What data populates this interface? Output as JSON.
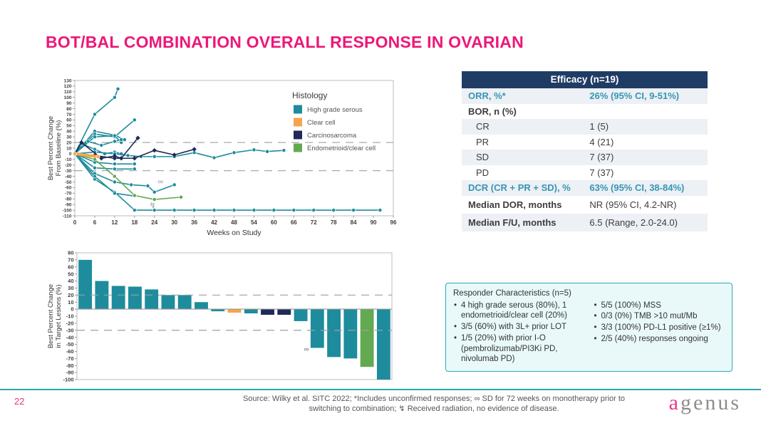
{
  "slide": {
    "title": "BOT/BAL COMBINATION OVERALL RESPONSE IN OVARIAN",
    "page_number": "22"
  },
  "efficacy_table": {
    "header": "Efficacy (n=19)",
    "rows": [
      {
        "label": "ORR, %*",
        "value": "26% (95% CI, 9-51%)",
        "style": "teal"
      },
      {
        "label": "BOR, n (%)",
        "value": "",
        "style": "bold"
      },
      {
        "label": "CR",
        "value": "1 (5)",
        "indent": true
      },
      {
        "label": "PR",
        "value": "4 (21)",
        "indent": true
      },
      {
        "label": "SD",
        "value": "7 (37)",
        "indent": true
      },
      {
        "label": "PD",
        "value": "7 (37)",
        "indent": true
      },
      {
        "label": "DCR (CR + PR + SD), %",
        "value": "63% (95% CI, 38-84%)",
        "style": "teal"
      },
      {
        "label": "Median DOR, months",
        "value": "NR (95% CI, 4.2-NR)",
        "style": "boldlabel"
      },
      {
        "label": "Median F/U, months",
        "value": "6.5 (Range, 2.0-24.0)",
        "style": "boldlabel"
      }
    ]
  },
  "responder_box": {
    "title": "Responder Characteristics (n=5)",
    "left_bullets": [
      "4 high grade serous (80%), 1 endometrioid/clear cell (20%)",
      "3/5 (60%) with 3L+ prior LOT",
      "1/5 (20%) with prior I-O (pembrolizumab/PI3Ki PD, nivolumab PD)"
    ],
    "right_bullets": [
      "5/5 (100%) MSS",
      "0/3 (0%) TMB >10 mut/Mb",
      "3/3 (100%) PD-L1 positive (≥1%)",
      "2/5 (40%) responses ongoing"
    ]
  },
  "footer": {
    "source_line1": "Source:  Wilky et al. SITC 2022; *Includes unconfirmed responses; ∞ SD for 72 weeks on monotherapy prior to",
    "source_line2": "switching to combination; ↯ Received radiation, no evidence of disease.",
    "logo_a": "a",
    "logo_rest": "genus"
  },
  "colors": {
    "accent_pink": "#EC1878",
    "teal": "#1E8C9C",
    "orange": "#F5A54B",
    "navy": "#1F2A5A",
    "green": "#62A951",
    "table_header_navy": "#1F3C64",
    "teal_text": "#3596B5",
    "divider_teal": "#2AA7AE"
  },
  "chart_data": [
    {
      "type": "line",
      "name": "spider-plot",
      "title": "",
      "xlabel": "Weeks on Study",
      "ylabel": "Best Percent Change From Baseline (%)",
      "ylabel_lines": [
        "Best Percent Change",
        "From Baseline (%)"
      ],
      "xlim": [
        0,
        96
      ],
      "ylim": [
        -110,
        130
      ],
      "xtick_step": 6,
      "ytick_step": 10,
      "reference_lines": [
        20,
        -30
      ],
      "legend": {
        "title": "Histology",
        "position": "top-right",
        "entries": [
          {
            "label": "High grade serous",
            "color": "#1E8C9C"
          },
          {
            "label": "Clear cell",
            "color": "#F5A54B"
          },
          {
            "label": "Carcinosarcoma",
            "color": "#1F2A5A"
          },
          {
            "label": "Endometrioid/clear cell",
            "color": "#62A951"
          }
        ]
      },
      "series": [
        {
          "histology": "High grade serous",
          "color": "#1E8C9C",
          "points": [
            [
              0,
              0
            ],
            [
              6,
              70
            ],
            [
              12,
              100
            ],
            [
              13,
              115
            ]
          ]
        },
        {
          "histology": "High grade serous",
          "color": "#1E8C9C",
          "points": [
            [
              0,
              0
            ],
            [
              6,
              40
            ],
            [
              12,
              33
            ],
            [
              15,
              25
            ]
          ]
        },
        {
          "histology": "High grade serous",
          "color": "#1E8C9C",
          "points": [
            [
              0,
              0
            ],
            [
              6,
              35
            ],
            [
              12,
              30
            ],
            [
              18,
              60
            ]
          ]
        },
        {
          "histology": "High grade serous",
          "color": "#1E8C9C",
          "points": [
            [
              0,
              0
            ],
            [
              6,
              30
            ],
            [
              12,
              32
            ],
            [
              14,
              20
            ]
          ]
        },
        {
          "histology": "High grade serous",
          "color": "#1E8C9C",
          "points": [
            [
              0,
              0
            ],
            [
              4,
              22
            ],
            [
              8,
              15
            ],
            [
              12,
              22
            ],
            [
              14,
              25
            ]
          ]
        },
        {
          "histology": "High grade serous",
          "color": "#1E8C9C",
          "points": [
            [
              0,
              0
            ],
            [
              2,
              18
            ],
            [
              6,
              8
            ],
            [
              9,
              0
            ],
            [
              12,
              3
            ],
            [
              14,
              0
            ]
          ]
        },
        {
          "histology": "High grade serous",
          "color": "#1E8C9C",
          "points": [
            [
              0,
              0
            ],
            [
              6,
              3
            ],
            [
              12,
              0
            ],
            [
              16,
              -3
            ],
            [
              20,
              -5
            ],
            [
              24,
              -5
            ],
            [
              30,
              -5
            ],
            [
              36,
              2
            ],
            [
              42,
              -7
            ],
            [
              48,
              2
            ],
            [
              54,
              7
            ],
            [
              58,
              4
            ],
            [
              63,
              6
            ]
          ]
        },
        {
          "histology": "High grade serous",
          "color": "#1E8C9C",
          "points": [
            [
              0,
              0
            ],
            [
              6,
              -15
            ],
            [
              12,
              -18
            ],
            [
              18,
              -18
            ]
          ]
        },
        {
          "histology": "High grade serous",
          "color": "#1E8C9C",
          "points": [
            [
              0,
              0
            ],
            [
              6,
              -25
            ],
            [
              12,
              -27
            ],
            [
              18,
              -27
            ]
          ]
        },
        {
          "histology": "High grade serous",
          "color": "#1E8C9C",
          "points": [
            [
              0,
              0
            ],
            [
              6,
              -35
            ],
            [
              12,
              -50
            ],
            [
              17,
              -55
            ],
            [
              22,
              -57
            ],
            [
              24,
              -68
            ],
            [
              30,
              -55
            ]
          ]
        },
        {
          "histology": "High grade serous",
          "color": "#1E8C9C",
          "points": [
            [
              0,
              0
            ],
            [
              6,
              -45
            ],
            [
              12,
              -68
            ],
            [
              18,
              -100
            ],
            [
              24,
              -100
            ],
            [
              30,
              -100
            ],
            [
              36,
              -100
            ],
            [
              42,
              -100
            ],
            [
              48,
              -100
            ],
            [
              54,
              -100
            ],
            [
              60,
              -100
            ],
            [
              66,
              -100
            ],
            [
              72,
              -100
            ],
            [
              78,
              -100
            ],
            [
              84,
              -100
            ],
            [
              92,
              -100
            ]
          ]
        },
        {
          "histology": "High grade serous",
          "color": "#1E8C9C",
          "points": [
            [
              0,
              0
            ],
            [
              6,
              -40
            ],
            [
              12,
              -70
            ],
            [
              18,
              -75
            ]
          ]
        },
        {
          "histology": "Endometrioid/clear cell",
          "color": "#62A951",
          "points": [
            [
              0,
              0
            ],
            [
              6,
              -10
            ],
            [
              12,
              -40
            ],
            [
              18,
              -74
            ],
            [
              24,
              -81
            ],
            [
              32,
              -77
            ]
          ]
        },
        {
          "histology": "Carcinosarcoma",
          "color": "#1F2A5A",
          "marker": "diamond",
          "points": [
            [
              0,
              0
            ],
            [
              2,
              20
            ],
            [
              8,
              -8
            ],
            [
              12,
              -4
            ],
            [
              14,
              -8
            ],
            [
              19,
              28
            ]
          ]
        },
        {
          "histology": "Carcinosarcoma",
          "color": "#1F2A5A",
          "marker": "diamond",
          "points": [
            [
              0,
              0
            ],
            [
              6,
              -3
            ],
            [
              12,
              -8
            ],
            [
              18,
              -8
            ],
            [
              24,
              6
            ],
            [
              30,
              -2
            ],
            [
              36,
              8
            ]
          ]
        },
        {
          "histology": "Clear cell",
          "color": "#F5A54B",
          "width": 4,
          "points": [
            [
              0,
              0
            ],
            [
              7,
              -5
            ]
          ]
        }
      ],
      "annotations": [
        {
          "text": "∞",
          "x": 25,
          "y": -54
        },
        {
          "text": "↯",
          "x": 22.5,
          "y": -96
        }
      ]
    },
    {
      "type": "bar",
      "name": "waterfall-plot",
      "title": "",
      "ylabel": "Best Percent Change in Target Lesions (%)",
      "ylabel_lines": [
        "Best Percent Change",
        "in Target Lesions (%)"
      ],
      "ylim": [
        -100,
        80
      ],
      "ytick_step": 10,
      "reference_lines": [
        20,
        -30
      ],
      "values": [
        70,
        40,
        33,
        32,
        28,
        20,
        20,
        10,
        -3,
        -5,
        -6,
        -8,
        -8,
        -17,
        -55,
        -68,
        -70,
        -82,
        -100
      ],
      "bar_histology": [
        "High grade serous",
        "High grade serous",
        "High grade serous",
        "High grade serous",
        "High grade serous",
        "High grade serous",
        "High grade serous",
        "High grade serous",
        "High grade serous",
        "Clear cell",
        "High grade serous",
        "Carcinosarcoma",
        "Carcinosarcoma",
        "High grade serous",
        "High grade serous",
        "High grade serous",
        "High grade serous",
        "Endometrioid/clear cell",
        "High grade serous"
      ],
      "colors": [
        "#1E8C9C",
        "#1E8C9C",
        "#1E8C9C",
        "#1E8C9C",
        "#1E8C9C",
        "#1E8C9C",
        "#1E8C9C",
        "#1E8C9C",
        "#1E8C9C",
        "#F5A54B",
        "#1E8C9C",
        "#1F2A5A",
        "#1F2A5A",
        "#1E8C9C",
        "#1E8C9C",
        "#1E8C9C",
        "#1E8C9C",
        "#62A951",
        "#1E8C9C"
      ],
      "annotations": [
        {
          "text": "∞",
          "bar_index": 13,
          "y": -60,
          "dx": 8
        }
      ]
    }
  ]
}
